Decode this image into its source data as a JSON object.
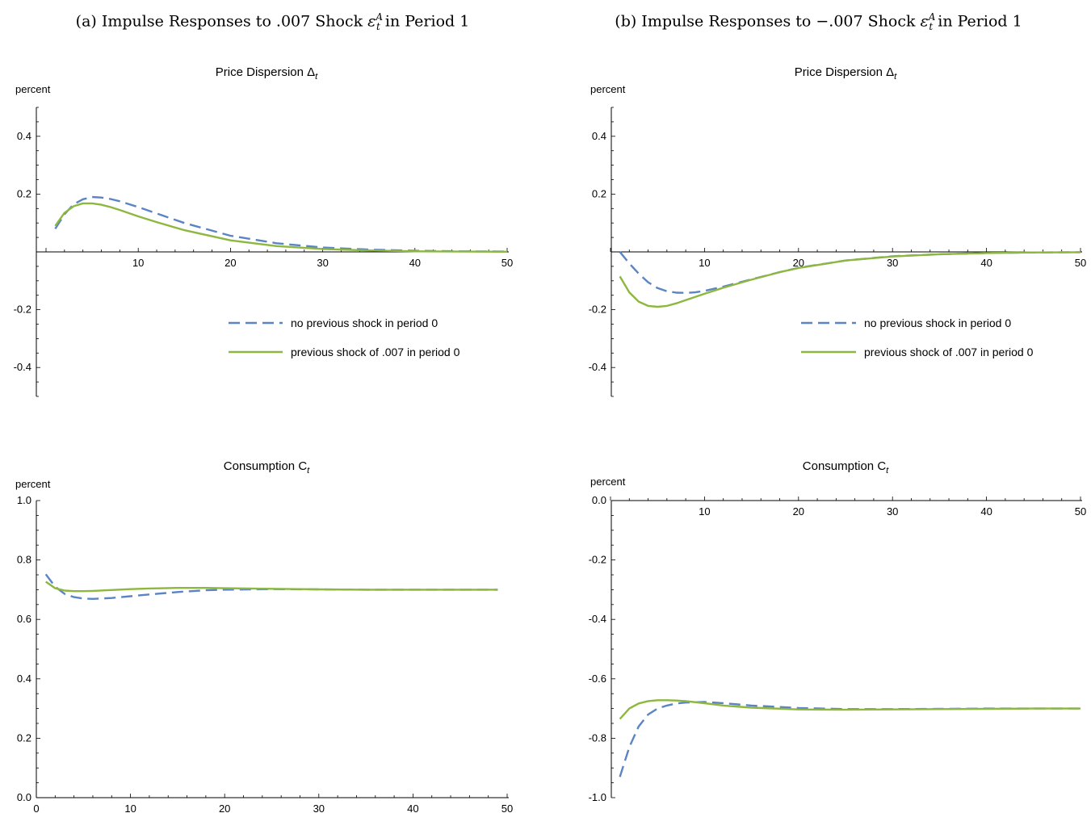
{
  "panels": [
    {
      "title_prefix": "(a) Impulse Responses to .007 Shock ",
      "title_symbol": "ε",
      "title_sup": "A",
      "title_sub": "t",
      "title_suffix": " in Period 1"
    },
    {
      "title_prefix": "(b) Impulse Responses to −.007 Shock ",
      "title_symbol": "ε",
      "title_sup": "A",
      "title_sub": "t",
      "title_suffix": " in Period 1"
    }
  ],
  "series_names": [
    "no previous shock in period 0",
    "previous shock of .007 in period 0"
  ],
  "colors": {
    "series_dashed": "#5b84c4",
    "series_solid": "#8db73e",
    "axis": "#000000"
  },
  "chart_data": [
    {
      "type": "line",
      "title": "Price Dispersion Δt",
      "title_base": "Price Dispersion Δ",
      "title_sub": "t",
      "ylabel": "percent",
      "xlim": [
        0,
        50
      ],
      "ylim": [
        -0.5,
        0.5
      ],
      "x_ticks": [
        10,
        20,
        30,
        40,
        50
      ],
      "y_ticks": [
        0.4,
        0.2,
        -0.2,
        -0.4
      ],
      "y_tick_labels": [
        "0.4",
        "0.2",
        "-0.2",
        "-0.4"
      ],
      "x_axis_at_y": 0,
      "legend": "right-center",
      "series": [
        {
          "name": "no previous shock in period 0",
          "style": "dashed",
          "x": [
            1,
            2,
            3,
            4,
            5,
            6,
            7,
            8,
            10,
            12,
            15,
            20,
            25,
            30,
            35,
            40,
            45,
            50
          ],
          "y": [
            0.08,
            0.13,
            0.165,
            0.182,
            0.19,
            0.188,
            0.183,
            0.175,
            0.155,
            0.133,
            0.1,
            0.056,
            0.03,
            0.015,
            0.008,
            0.004,
            0.002,
            0.001
          ]
        },
        {
          "name": "previous shock of .007 in period 0",
          "style": "solid",
          "x": [
            1,
            2,
            3,
            4,
            5,
            6,
            7,
            8,
            10,
            12,
            15,
            20,
            25,
            30,
            35,
            40,
            45,
            50
          ],
          "y": [
            0.09,
            0.135,
            0.158,
            0.168,
            0.168,
            0.163,
            0.155,
            0.145,
            0.123,
            0.103,
            0.075,
            0.04,
            0.02,
            0.01,
            0.005,
            0.002,
            0.001,
            0.0005
          ]
        }
      ]
    },
    {
      "type": "line",
      "title": "Price Dispersion Δt",
      "title_base": "Price Dispersion Δ",
      "title_sub": "t",
      "ylabel": "percent",
      "xlim": [
        0,
        50
      ],
      "ylim": [
        -0.5,
        0.5
      ],
      "x_ticks": [
        10,
        20,
        30,
        40,
        50
      ],
      "y_ticks": [
        0.4,
        0.2,
        -0.2,
        -0.4
      ],
      "y_tick_labels": [
        "0.4",
        "0.2",
        "-0.2",
        "-0.4"
      ],
      "x_axis_at_y": 0,
      "legend": "right-center",
      "series": [
        {
          "name": "no previous shock in period 0",
          "style": "dashed",
          "x": [
            1,
            2,
            3,
            4,
            5,
            6,
            7,
            8,
            9,
            10,
            12,
            15,
            18,
            20,
            25,
            30,
            35,
            40,
            45,
            50
          ],
          "y": [
            0,
            -0.04,
            -0.075,
            -0.105,
            -0.125,
            -0.136,
            -0.141,
            -0.142,
            -0.14,
            -0.135,
            -0.12,
            -0.095,
            -0.07,
            -0.055,
            -0.03,
            -0.015,
            -0.008,
            -0.004,
            -0.002,
            -0.001
          ]
        },
        {
          "name": "previous shock of .007 in period 0",
          "style": "solid",
          "x": [
            1,
            2,
            3,
            4,
            5,
            6,
            7,
            8,
            10,
            12,
            15,
            18,
            20,
            25,
            30,
            35,
            40,
            45,
            50
          ],
          "y": [
            -0.085,
            -0.14,
            -0.172,
            -0.187,
            -0.19,
            -0.187,
            -0.178,
            -0.167,
            -0.145,
            -0.124,
            -0.096,
            -0.07,
            -0.056,
            -0.03,
            -0.016,
            -0.008,
            -0.004,
            -0.002,
            -0.001
          ]
        }
      ]
    },
    {
      "type": "line",
      "title": "Consumption Ct",
      "title_base": "Consumption C",
      "title_sub": "t",
      "ylabel": "percent",
      "xlim": [
        0,
        50
      ],
      "ylim": [
        0,
        1
      ],
      "x_ticks": [
        0,
        10,
        20,
        30,
        40,
        50
      ],
      "y_ticks": [
        0,
        0.2,
        0.4,
        0.6,
        0.8,
        1.0
      ],
      "y_tick_labels": [
        "0.0",
        "0.2",
        "0.4",
        "0.6",
        "0.8",
        "1.0"
      ],
      "x_axis_at_y": 0,
      "legend": "none",
      "series": [
        {
          "name": "no previous shock in period 0",
          "style": "dashed",
          "x": [
            1,
            2,
            3,
            4,
            5,
            6,
            8,
            10,
            12,
            15,
            18,
            20,
            25,
            30,
            35,
            40,
            45,
            49
          ],
          "y": [
            0.752,
            0.71,
            0.686,
            0.675,
            0.67,
            0.669,
            0.672,
            0.678,
            0.684,
            0.692,
            0.698,
            0.7,
            0.702,
            0.701,
            0.7,
            0.7,
            0.7,
            0.7
          ]
        },
        {
          "name": "previous shock of .007 in period 0",
          "style": "solid",
          "x": [
            1,
            2,
            3,
            4,
            5,
            6,
            8,
            10,
            12,
            15,
            18,
            20,
            25,
            30,
            35,
            40,
            45,
            49
          ],
          "y": [
            0.727,
            0.705,
            0.697,
            0.695,
            0.695,
            0.696,
            0.699,
            0.702,
            0.704,
            0.706,
            0.706,
            0.705,
            0.703,
            0.701,
            0.7,
            0.7,
            0.7,
            0.7
          ]
        }
      ]
    },
    {
      "type": "line",
      "title": "Consumption Ct",
      "title_base": "Consumption C",
      "title_sub": "t",
      "ylabel": "percent",
      "xlim": [
        0,
        50
      ],
      "ylim": [
        -1,
        0
      ],
      "x_ticks": [
        10,
        20,
        30,
        40,
        50
      ],
      "y_ticks": [
        0,
        -0.2,
        -0.4,
        -0.6,
        -0.8,
        -1.0
      ],
      "y_tick_labels": [
        "0.0",
        "-0.2",
        "-0.4",
        "-0.6",
        "-0.8",
        "-1.0"
      ],
      "x_axis_at_y": 0,
      "legend": "none",
      "series": [
        {
          "name": "no previous shock in period 0",
          "style": "dashed",
          "x": [
            1,
            2,
            3,
            4,
            5,
            6,
            7,
            8,
            10,
            12,
            15,
            20,
            25,
            30,
            35,
            40,
            45,
            50
          ],
          "y": [
            -0.93,
            -0.83,
            -0.76,
            -0.72,
            -0.7,
            -0.69,
            -0.683,
            -0.68,
            -0.678,
            -0.682,
            -0.69,
            -0.698,
            -0.702,
            -0.702,
            -0.701,
            -0.7,
            -0.7,
            -0.7
          ]
        },
        {
          "name": "previous shock of .007 in period 0",
          "style": "solid",
          "x": [
            1,
            2,
            3,
            4,
            5,
            6,
            7,
            8,
            10,
            12,
            15,
            20,
            25,
            30,
            35,
            40,
            45,
            50
          ],
          "y": [
            -0.735,
            -0.7,
            -0.683,
            -0.675,
            -0.672,
            -0.672,
            -0.673,
            -0.675,
            -0.682,
            -0.69,
            -0.697,
            -0.703,
            -0.704,
            -0.703,
            -0.702,
            -0.701,
            -0.7,
            -0.7
          ]
        }
      ]
    }
  ]
}
